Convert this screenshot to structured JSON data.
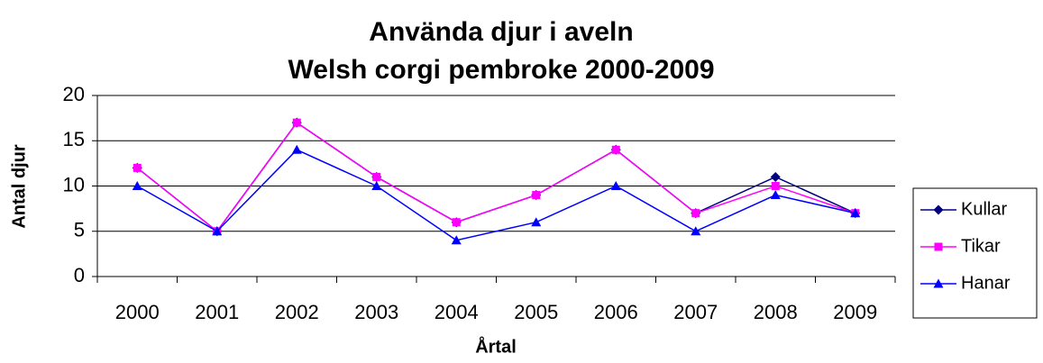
{
  "chart_data": {
    "type": "line",
    "title": "Använda djur i aveln",
    "subtitle": "Welsh corgi pembroke 2000-2009",
    "x_label": "Årtal",
    "y_label": "Antal djur",
    "categories": [
      "2000",
      "2001",
      "2002",
      "2003",
      "2004",
      "2005",
      "2006",
      "2007",
      "2008",
      "2009"
    ],
    "series": [
      {
        "name": "Kullar",
        "color": "#000080",
        "marker": "diamond",
        "values": [
          12,
          5,
          17,
          11,
          6,
          9,
          14,
          7,
          11,
          7
        ]
      },
      {
        "name": "Tikar",
        "color": "#ff00ff",
        "marker": "square",
        "values": [
          12,
          5,
          17,
          11,
          6,
          9,
          14,
          7,
          10,
          7
        ]
      },
      {
        "name": "Hanar",
        "color": "#0000ff",
        "marker": "triangle",
        "values": [
          10,
          5,
          14,
          10,
          4,
          6,
          10,
          5,
          9,
          7
        ]
      }
    ],
    "ylim": [
      0,
      20
    ],
    "yticks": [
      0,
      5,
      10,
      15,
      20
    ],
    "grid": true,
    "legend": "right"
  }
}
